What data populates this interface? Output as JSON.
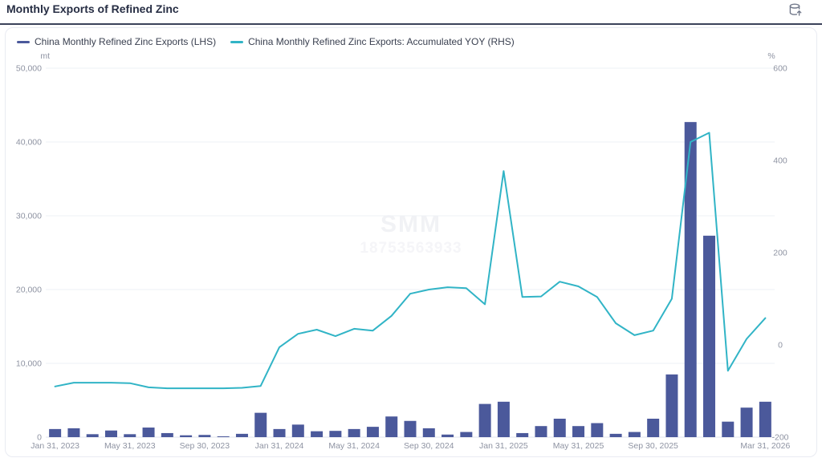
{
  "header": {
    "title": "Monthly Exports of Refined Zinc"
  },
  "legend": {
    "items": [
      {
        "label": "China Monthly Refined Zinc Exports (LHS)",
        "color": "#4b599b"
      },
      {
        "label": "China Monthly Refined Zinc Exports: Accumulated YOY (RHS)",
        "color": "#31b4c6"
      }
    ]
  },
  "watermark": {
    "logo": "SMM",
    "number": "18753563933"
  },
  "colors": {
    "bar": "#4b599b",
    "line": "#31b4c6",
    "gridline": "#eef0f6",
    "axis_line": "#e2e5ee",
    "tick_text": "#8e93a2",
    "divider": "#3b425a"
  },
  "chart_data": {
    "type": "bar",
    "title": "Monthly Exports of Refined Zinc",
    "months": [
      "2023-01",
      "2023-02",
      "2023-03",
      "2023-04",
      "2023-05",
      "2023-06",
      "2023-07",
      "2023-08",
      "2023-09",
      "2023-10",
      "2023-11",
      "2023-12",
      "2024-01",
      "2024-02",
      "2024-03",
      "2024-04",
      "2024-05",
      "2024-06",
      "2024-07",
      "2024-08",
      "2024-09",
      "2024-10",
      "2024-11",
      "2024-12",
      "2025-01",
      "2025-02",
      "2025-03",
      "2025-04",
      "2025-05",
      "2025-06",
      "2025-07",
      "2025-08",
      "2025-09",
      "2025-10",
      "2025-11",
      "2025-12",
      "2026-01",
      "2026-02",
      "2026-03"
    ],
    "series": [
      {
        "name": "China Monthly Refined Zinc Exports (LHS)",
        "type": "bar",
        "axis": "left",
        "color": "#4b599b",
        "values": [
          1100,
          1200,
          400,
          900,
          400,
          1300,
          550,
          250,
          300,
          80,
          450,
          3300,
          1100,
          1700,
          800,
          850,
          1100,
          1400,
          2800,
          2200,
          1200,
          350,
          700,
          4500,
          4800,
          550,
          1500,
          2500,
          1500,
          1900,
          450,
          700,
          2500,
          8500,
          42700,
          27300,
          2100,
          4000,
          4800
        ]
      },
      {
        "name": "China Monthly Refined Zinc Exports: Accumulated YOY (RHS)",
        "type": "line",
        "axis": "right",
        "color": "#31b4c6",
        "values": [
          -90,
          -82,
          -82,
          -82,
          -83,
          -92,
          -94,
          -94,
          -94,
          -94,
          -93,
          -89,
          -5,
          24,
          33,
          19,
          35,
          31,
          63,
          111,
          120,
          125,
          123,
          88,
          377,
          104,
          105,
          137,
          127,
          104,
          47,
          21,
          31,
          100,
          440,
          460,
          -56,
          13,
          58
        ]
      }
    ],
    "left_axis": {
      "unit": "mt",
      "min": 0,
      "max": 50000,
      "tick_values": [
        0,
        10000,
        20000,
        30000,
        40000,
        50000
      ],
      "tick_labels": [
        "0",
        "10,000",
        "20,000",
        "30,000",
        "40,000",
        "50,000"
      ]
    },
    "right_axis": {
      "unit": "%",
      "min": -200,
      "max": 600,
      "tick_values": [
        -200,
        0,
        200,
        400,
        600
      ],
      "tick_labels": [
        "-200",
        "0",
        "200",
        "400",
        "600"
      ]
    },
    "x_ticks": [
      {
        "index": 0,
        "label": "Jan 31, 2023"
      },
      {
        "index": 4,
        "label": "May 31, 2023"
      },
      {
        "index": 8,
        "label": "Sep 30, 2023"
      },
      {
        "index": 12,
        "label": "Jan 31, 2024"
      },
      {
        "index": 16,
        "label": "May 31, 2024"
      },
      {
        "index": 20,
        "label": "Sep 30, 2024"
      },
      {
        "index": 24,
        "label": "Jan 31, 2025"
      },
      {
        "index": 28,
        "label": "May 31, 2025"
      },
      {
        "index": 32,
        "label": "Sep 30, 2025"
      },
      {
        "index": 38,
        "label": "Mar 31, 2026"
      }
    ],
    "legend_position": "top-left",
    "grid": true
  }
}
